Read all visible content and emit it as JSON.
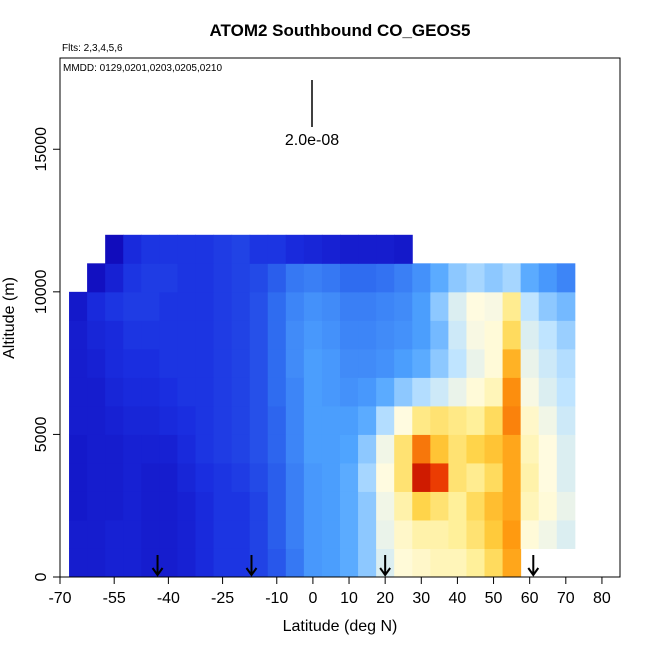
{
  "chart_data": {
    "type": "heatmap",
    "title": "ATOM2 Southbound CO_GEOS5",
    "annotations": [
      "Flts: 2,3,4,5,6",
      "MMDD: 0129,0201,0203,0205,0210"
    ],
    "scale_label": "2.0e-08",
    "xlabel": "Latitude (deg N)",
    "ylabel": "Altitude (m)",
    "xlim": [
      -70,
      85
    ],
    "ylim": [
      0,
      18200
    ],
    "xticks": [
      -70,
      -55,
      -40,
      -25,
      -10,
      0,
      10,
      20,
      30,
      40,
      50,
      60,
      70,
      80
    ],
    "yticks": [
      0,
      5000,
      10000,
      15000
    ],
    "x": [
      -65,
      -60,
      -55,
      -50,
      -45,
      -40,
      -35,
      -30,
      -25,
      -20,
      -15,
      -10,
      -5,
      0,
      5,
      10,
      15,
      20,
      25,
      30,
      35,
      40,
      45,
      50,
      55,
      60,
      65,
      70
    ],
    "y": [
      500,
      1500,
      2500,
      3500,
      4500,
      5500,
      6500,
      7500,
      8500,
      9500,
      10500,
      11500
    ],
    "cell_width": 5,
    "cell_height": 1000,
    "zlim": [
      1,
      10
    ],
    "colormap": [
      "#1008b8",
      "#1a2ee0",
      "#2f6cf0",
      "#4fa4ff",
      "#bfe4ff",
      "#fffbe0",
      "#fff09a",
      "#ffd040",
      "#ff9a10",
      "#e83000",
      "#b00000"
    ],
    "z": [
      [
        1.5,
        1.5,
        1.6,
        1.6,
        1.5,
        1.5,
        1.6,
        1.8,
        2,
        2,
        2.2,
        2.5,
        3,
        3.5,
        3.6,
        3.8,
        4.2,
        5,
        5.6,
        5.8,
        6,
        6,
        6.4,
        7,
        8,
        null,
        null,
        null
      ],
      [
        1.5,
        1.5,
        1.6,
        1.6,
        1.5,
        1.5,
        1.6,
        1.8,
        2,
        2,
        2.2,
        2.6,
        3.1,
        3.5,
        3.6,
        3.8,
        4.2,
        5.2,
        5.8,
        6.2,
        6.2,
        6.4,
        6.8,
        7.4,
        8.2,
        5.6,
        5.3,
        5
      ],
      [
        1.4,
        1.5,
        1.5,
        1.6,
        1.5,
        1.5,
        1.6,
        1.8,
        2,
        2,
        2.2,
        2.6,
        3.1,
        3.5,
        3.6,
        3.8,
        4.2,
        5.3,
        6.2,
        7.2,
        6.8,
        6.4,
        7,
        7.6,
        8,
        6,
        5.6,
        5.2
      ],
      [
        1.4,
        1.5,
        1.5,
        1.6,
        1.5,
        1.5,
        1.7,
        1.9,
        2,
        2.1,
        2.3,
        2.6,
        3.1,
        3.5,
        3.6,
        3.8,
        4.4,
        5.5,
        6.8,
        9.5,
        9,
        6.8,
        6.5,
        7,
        8,
        6.2,
        5.5,
        5
      ],
      [
        1.4,
        1.5,
        1.5,
        1.6,
        1.6,
        1.6,
        1.8,
        2,
        2.1,
        2.2,
        2.4,
        2.7,
        3.2,
        3.6,
        3.6,
        3.7,
        4.2,
        5.3,
        6.8,
        8.5,
        7.5,
        6.8,
        7.2,
        7.5,
        8,
        6,
        5.5,
        5
      ],
      [
        1.5,
        1.5,
        1.6,
        1.7,
        1.7,
        1.8,
        1.9,
        2,
        2.1,
        2.2,
        2.4,
        2.7,
        3.2,
        3.6,
        3.6,
        3.6,
        3.8,
        4.5,
        5.5,
        6.6,
        6.8,
        6.6,
        6.4,
        7,
        8.4,
        5.8,
        5.3,
        4.8
      ],
      [
        1.5,
        1.5,
        1.7,
        1.8,
        1.8,
        1.9,
        2,
        2,
        2.1,
        2.2,
        2.4,
        2.8,
        3.2,
        3.6,
        3.5,
        3.4,
        3.5,
        3.8,
        4.2,
        4.5,
        4.8,
        5.2,
        5.6,
        6,
        8.3,
        5.4,
        5,
        4.6
      ],
      [
        1.5,
        1.6,
        1.8,
        1.9,
        1.9,
        2,
        2,
        2,
        2.1,
        2.2,
        2.4,
        2.8,
        3.3,
        3.6,
        3.5,
        3.3,
        3.3,
        3.4,
        3.6,
        3.8,
        4.2,
        4.6,
        5.2,
        5.6,
        7.8,
        5.2,
        4.8,
        4.5
      ],
      [
        1.5,
        1.7,
        1.8,
        2,
        2,
        2,
        2,
        2,
        2.1,
        2.2,
        2.4,
        2.8,
        3.3,
        3.5,
        3.4,
        3.2,
        3.2,
        3.3,
        3.4,
        3.6,
        4,
        4.8,
        5.4,
        5.6,
        7,
        5,
        4.6,
        4.3
      ],
      [
        1.4,
        1.8,
        2,
        2.1,
        2.1,
        2,
        2,
        2,
        2.1,
        2.2,
        2.4,
        2.8,
        3.2,
        3.4,
        3.3,
        3.1,
        3.1,
        3.2,
        3.3,
        3.6,
        4.2,
        5,
        5.5,
        5.4,
        6.5,
        4.6,
        4.2,
        4
      ],
      [
        null,
        1.2,
        1.6,
        2,
        2.1,
        2.1,
        2,
        2,
        2.1,
        2.2,
        2.3,
        2.6,
        3,
        3.1,
        3,
        2.8,
        2.8,
        2.9,
        3.1,
        3.4,
        3.8,
        4.2,
        4.4,
        4.2,
        4.4,
        3.8,
        3.5,
        3.2
      ],
      [
        null,
        null,
        1.1,
        1.8,
        2,
        2,
        2,
        2,
        2.1,
        2.2,
        2,
        2,
        1.8,
        1.7,
        1.6,
        1.5,
        1.5,
        1.5,
        1.4,
        null,
        null,
        null,
        null,
        null,
        null,
        null,
        null,
        null
      ]
    ],
    "markers_lat": [
      -43,
      -17,
      20,
      61
    ]
  }
}
